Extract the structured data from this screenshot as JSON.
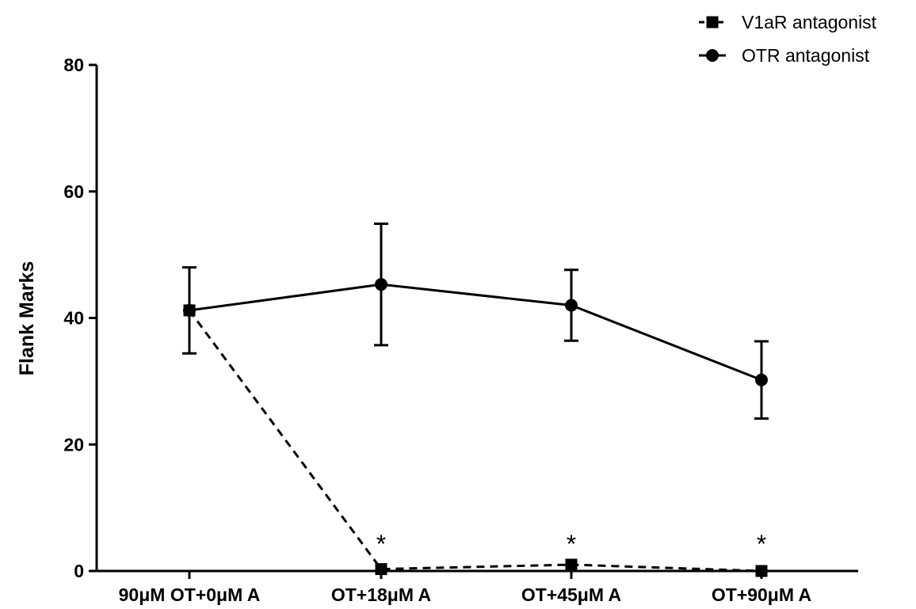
{
  "chart_data": {
    "type": "line",
    "title": "",
    "xlabel": "",
    "ylabel": "Flank Marks",
    "categories": [
      "90μM OT+0μM A",
      "OT+18μM A",
      "OT+45μM A",
      "OT+90μM A"
    ],
    "ylim": [
      0,
      80
    ],
    "yticks": [
      0,
      20,
      40,
      60,
      80
    ],
    "grid": false,
    "legend_position": "top-right",
    "series": [
      {
        "name": "V1aR antagonist",
        "marker": "square",
        "line_style": "dashed",
        "color": "#000000",
        "values": [
          41.2,
          0.3,
          1.0,
          0.0
        ],
        "error": [
          null,
          null,
          null,
          null
        ]
      },
      {
        "name": "OTR antagonist",
        "marker": "circle",
        "line_style": "solid",
        "color": "#000000",
        "values": [
          41.2,
          45.3,
          42.0,
          30.2
        ],
        "error": [
          6.8,
          9.6,
          5.6,
          6.1
        ]
      }
    ],
    "annotations": [
      {
        "category": "OT+18μM A",
        "text": "*"
      },
      {
        "category": "OT+45μM A",
        "text": "*"
      },
      {
        "category": "OT+90μM A",
        "text": "*"
      }
    ]
  }
}
